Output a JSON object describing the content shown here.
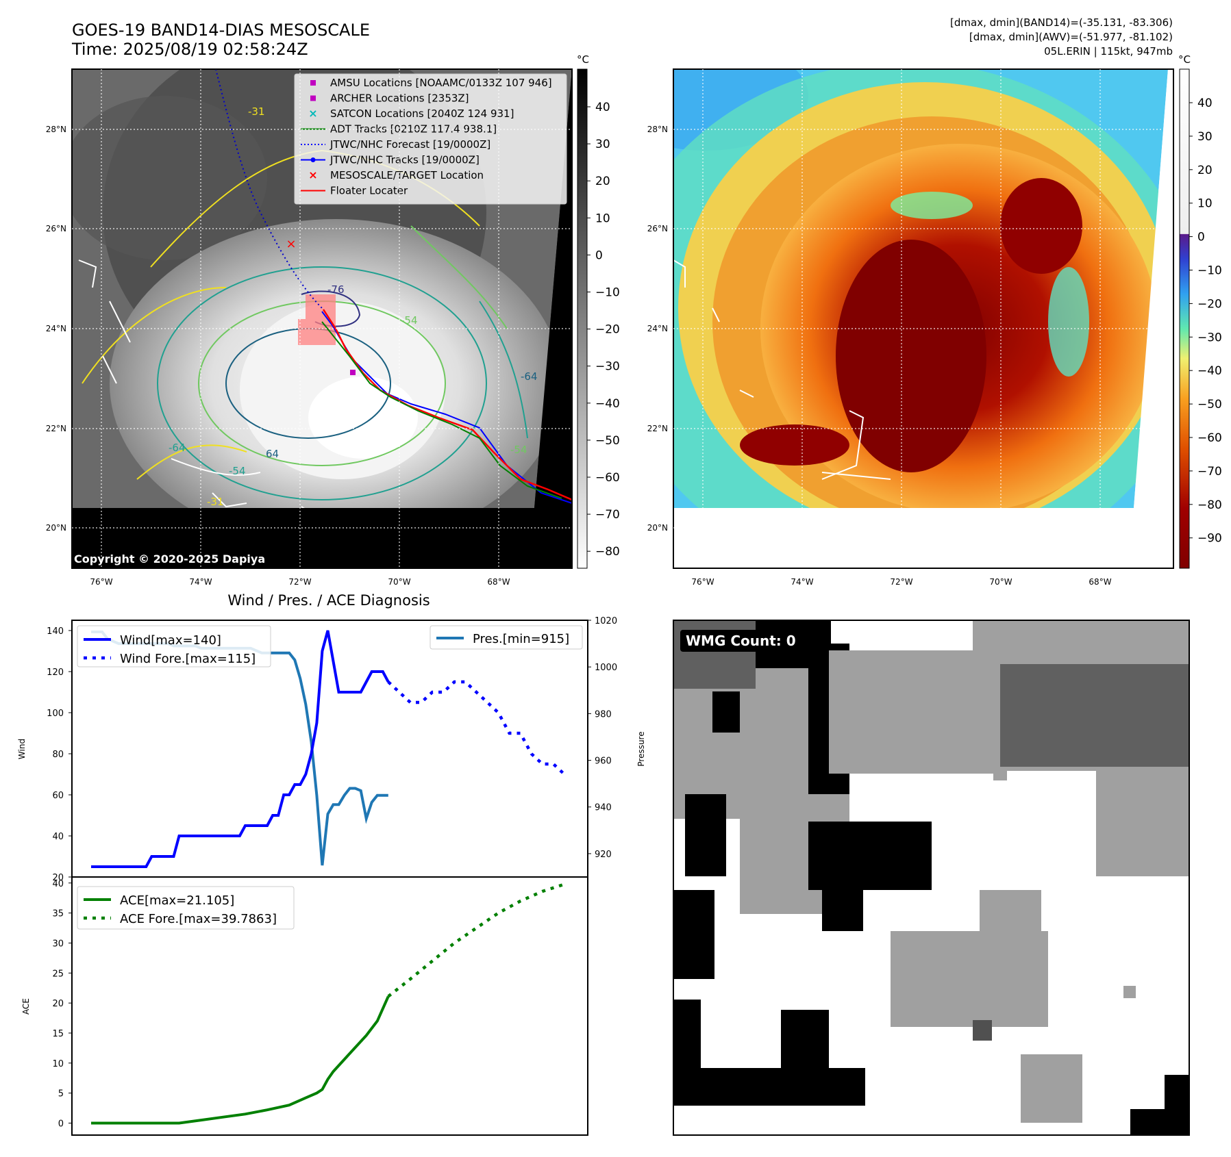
{
  "header": {
    "title_line1": "GOES-19 BAND14-DIAS MESOSCALE",
    "title_line2": "Time: 2025/08/19 02:58:24Z",
    "info_line1": "[dmax, dmin](BAND14)=(-35.131, -83.306)",
    "info_line2": "[dmax, dmin](AWV)=(-51.977, -81.102)",
    "info_line3": "05L.ERIN | 115kt, 947mb"
  },
  "colors": {
    "wind": "#0000ff",
    "pressure": "#1f77b4",
    "ace": "#008000",
    "track": "#ff0000"
  },
  "map_panels": {
    "lat_labels": [
      "28°N",
      "26°N",
      "24°N",
      "22°N",
      "20°N"
    ],
    "lon_labels": [
      "76°W",
      "74°W",
      "72°W",
      "70°W",
      "68°W"
    ],
    "unit": "°C",
    "copyright": "Copyright © 2020-2025 Dapiya",
    "legend": [
      {
        "label": "AMSU Locations [NOAAMC/0133Z 107 946]",
        "marker": "square",
        "color": "#c000c0"
      },
      {
        "label": "ARCHER Locations [2353Z]",
        "marker": "square",
        "color": "#c000c0"
      },
      {
        "label": "SATCON Locations [2040Z 124 931]",
        "marker": "x",
        "color": "#00b8b8"
      },
      {
        "label": "ADT Tracks [0210Z 117.4 938.1]",
        "marker": "line",
        "color": "#008000"
      },
      {
        "label": "JTWC/NHC Forecast [19/0000Z]",
        "marker": "dotted",
        "color": "#0000ff"
      },
      {
        "label": "JTWC/NHC Tracks [19/0000Z]",
        "marker": "line-dot",
        "color": "#0000ff"
      },
      {
        "label": "MESOSCALE/TARGET Location",
        "marker": "x",
        "color": "#ff0000"
      },
      {
        "label": "Floater Locater",
        "marker": "line",
        "color": "#ff0000"
      }
    ],
    "gray_colorbar_ticks": [
      "40",
      "30",
      "20",
      "10",
      "0",
      "−10",
      "−20",
      "−30",
      "−40",
      "−50",
      "−60",
      "−70",
      "−80"
    ],
    "color_colorbar_ticks": [
      "40",
      "30",
      "20",
      "10",
      "0",
      "−10",
      "−20",
      "−30",
      "−40",
      "−50",
      "−60",
      "−70",
      "−80",
      "−90"
    ],
    "contour_labels": [
      "-31",
      "-31",
      "-76",
      "-54",
      "-64",
      "64",
      "-54",
      "-64",
      "-54"
    ]
  },
  "wmg": {
    "label": "WMG Count: 0"
  },
  "chart_data": [
    {
      "type": "line",
      "title": "Wind / Pres. / ACE Diagnosis",
      "ylabel": "Wind",
      "y2label": "Pressure",
      "ylim": [
        20,
        145
      ],
      "y2lim": [
        910,
        1020
      ],
      "yticks": [
        20,
        40,
        60,
        80,
        100,
        120,
        140
      ],
      "y2ticks": [
        920,
        940,
        960,
        980,
        1000,
        1020
      ],
      "legend": [
        "Wind[max=140]",
        "Wind Fore.[max=115]",
        "Pres.[min=915]"
      ],
      "series": [
        {
          "name": "Wind[max=140]",
          "x": [
            0,
            1,
            2,
            3,
            4,
            5,
            6,
            7,
            8,
            9,
            10,
            11,
            12,
            13,
            14,
            15,
            16,
            17,
            18,
            19,
            20,
            21,
            22,
            23,
            24,
            25,
            26,
            27,
            28,
            29,
            30,
            31,
            32,
            33,
            34,
            35,
            36,
            37,
            38,
            39,
            40,
            41,
            42,
            43,
            44,
            45,
            46,
            47,
            48,
            49,
            50,
            51,
            52,
            53,
            54
          ],
          "values": [
            25,
            25,
            25,
            25,
            25,
            25,
            25,
            25,
            25,
            25,
            25,
            30,
            30,
            30,
            30,
            30,
            40,
            40,
            40,
            40,
            40,
            40,
            40,
            40,
            40,
            40,
            40,
            40,
            45,
            45,
            45,
            45,
            45,
            50,
            50,
            60,
            60,
            65,
            65,
            70,
            80,
            95,
            130,
            140,
            125,
            110,
            110,
            110,
            110,
            110,
            115,
            120,
            120,
            120,
            115
          ]
        },
        {
          "name": "Wind Fore.[max=115]",
          "x": [
            54,
            56,
            58,
            60,
            62,
            64,
            66,
            68,
            70,
            72,
            74,
            76,
            78,
            80,
            82,
            84,
            86
          ],
          "values": [
            115,
            110,
            105,
            105,
            110,
            110,
            115,
            115,
            110,
            105,
            100,
            90,
            90,
            80,
            75,
            75,
            70
          ]
        },
        {
          "name": "Pres.[min=915]",
          "x": [
            0,
            1,
            2,
            3,
            4,
            5,
            6,
            7,
            8,
            9,
            10,
            11,
            12,
            13,
            14,
            15,
            16,
            17,
            18,
            19,
            20,
            21,
            22,
            23,
            24,
            25,
            26,
            27,
            28,
            29,
            30,
            31,
            32,
            33,
            34,
            35,
            36,
            37,
            38,
            39,
            40,
            41,
            42,
            43,
            44,
            45,
            46,
            47,
            48,
            49,
            50,
            51,
            52,
            53,
            54
          ],
          "values": [
            1015,
            1015,
            1015,
            1012,
            1011,
            1010,
            1010,
            1010,
            1010,
            1010,
            1010,
            1010,
            1010,
            1010,
            1010,
            1009,
            1009,
            1009,
            1009,
            1009,
            1008,
            1008,
            1008,
            1008,
            1008,
            1008,
            1008,
            1008,
            1008,
            1008,
            1007,
            1006,
            1006,
            1006,
            1006,
            1006,
            1006,
            1003,
            995,
            984,
            968,
            945,
            915,
            937,
            941,
            941,
            945,
            948,
            948,
            947,
            935,
            942,
            945,
            945,
            945
          ]
        }
      ]
    },
    {
      "type": "line",
      "ylabel": "ACE",
      "ylim": [
        -2,
        41
      ],
      "yticks": [
        0,
        5,
        10,
        15,
        20,
        25,
        30,
        35,
        40
      ],
      "legend": [
        "ACE[max=21.105]",
        "ACE Fore.[max=39.7863]"
      ],
      "series": [
        {
          "name": "ACE[max=21.105]",
          "x": [
            0,
            4,
            8,
            12,
            16,
            20,
            24,
            28,
            32,
            36,
            39,
            41,
            42,
            43,
            44,
            46,
            48,
            50,
            52,
            54
          ],
          "values": [
            0,
            0,
            0,
            0,
            0,
            0.5,
            1.0,
            1.5,
            2.2,
            3.0,
            4.2,
            5.0,
            5.6,
            7.3,
            8.6,
            10.6,
            12.6,
            14.6,
            17.0,
            21.105
          ]
        },
        {
          "name": "ACE Fore.[max=39.7863]",
          "x": [
            54,
            58,
            62,
            66,
            70,
            74,
            78,
            82,
            86
          ],
          "values": [
            21.105,
            24.0,
            27.0,
            30.0,
            32.5,
            35.0,
            37.0,
            38.6,
            39.7863
          ]
        }
      ]
    }
  ]
}
